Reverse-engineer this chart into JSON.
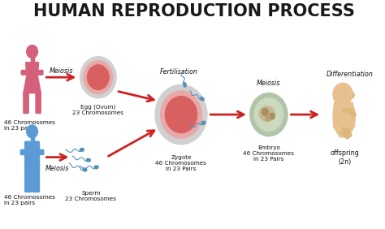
{
  "title": "HUMAN REPRODUCTION PROCESS",
  "bg_color": "#ffffff",
  "title_color": "#1a1a1a",
  "title_fontsize": 15,
  "arrow_color": "#cc2222",
  "female_color": "#d4607a",
  "male_color": "#5b9bd5",
  "egg_outer_color": "#d0d0d0",
  "egg_mid_color": "#e8a8a8",
  "egg_inner_color": "#d96060",
  "embryo_outer_color": "#b8c8b0",
  "embryo_mid_color": "#d0dcc8",
  "embryo_inner_color": "#c8a878",
  "sperm_color": "#5590bb",
  "fetus_color": "#e8c090",
  "labels": {
    "female_chromosomes": "46 Chromosomes\nin 23 pairs",
    "female_meiosis": "Meiosis",
    "egg_label": "Egg (Ovum)\n23 Chromosomes",
    "fertilisation": "Fertilisation",
    "zygote_label": "Zygote\n46 Chromosomes\nin 23 Pairs",
    "meiosis2": "Meiosis",
    "embryo_label": "Embryo\n46 Chromosomes\nin 23 Pairs",
    "differentiation": "Differentiation",
    "offspring": "offspring\n(2n)",
    "male_chromosomes": "46 Chromosomes\nin 23 pairs",
    "male_meiosis": "Meiosis",
    "sperm_label": "Sperm\n23 Chromosomes"
  },
  "label_fontsize": 5.5,
  "small_fontsize": 5.2,
  "italic_fontsize": 5.8
}
